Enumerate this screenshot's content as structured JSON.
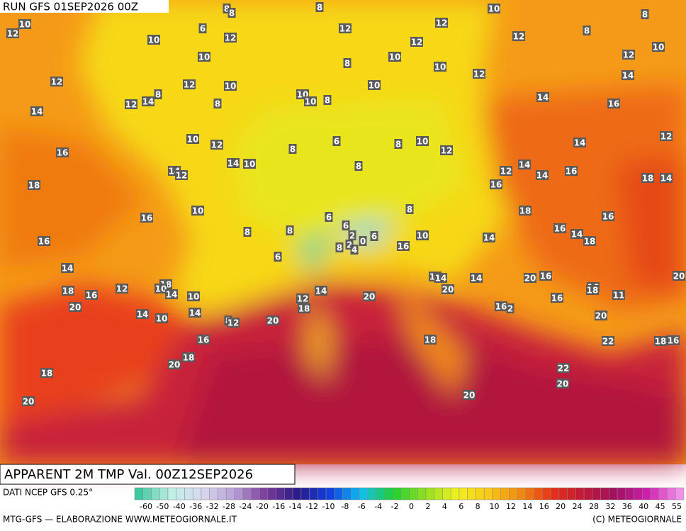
{
  "header": {
    "run": "RUN GFS 01SEP2026 00Z"
  },
  "map_labels": [
    10,
    12,
    10,
    10,
    12,
    6,
    8,
    8,
    8,
    12,
    8,
    10,
    10,
    12,
    12,
    10,
    12,
    8,
    8,
    12,
    10,
    14,
    12,
    10,
    14,
    16,
    12,
    14,
    12,
    12,
    14,
    8,
    12,
    10,
    8,
    10,
    10,
    8,
    14,
    16,
    10,
    12,
    14,
    10,
    14,
    12,
    8,
    6,
    8,
    8,
    10,
    12,
    12,
    14,
    14,
    16,
    18,
    14,
    16,
    18,
    16,
    16,
    14,
    18,
    18,
    16,
    16,
    10,
    8,
    8,
    6,
    8,
    10,
    14,
    16,
    6,
    6,
    2,
    6,
    0,
    2,
    4,
    8,
    14,
    18,
    16,
    12,
    18,
    10,
    14,
    10,
    11,
    14,
    14,
    20,
    16,
    20,
    20,
    20,
    14,
    12,
    18,
    16,
    11,
    18,
    16,
    16,
    2,
    20,
    14,
    10,
    14,
    8,
    12,
    20,
    20,
    16,
    22,
    18,
    16,
    18,
    18,
    20,
    22,
    20,
    20,
    18,
    20
  ],
  "footer": {
    "title": "APPARENT 2M TMP Val. 00Z12SEP2026",
    "source": "DATI NCEP GFS 0.25°",
    "credit": "MTG-GFS — ELABORAZIONE WWW.METEOGIORNALE.IT",
    "copyright": "(C) METEOGIORNALE"
  },
  "scale": {
    "ticks": [
      -60,
      -50,
      -40,
      -36,
      -32,
      -28,
      -24,
      -20,
      -16,
      -14,
      -12,
      -10,
      -8,
      -6,
      -4,
      -2,
      0,
      2,
      4,
      6,
      8,
      10,
      12,
      14,
      16,
      20,
      24,
      28,
      32,
      36,
      40,
      45,
      55
    ]
  }
}
